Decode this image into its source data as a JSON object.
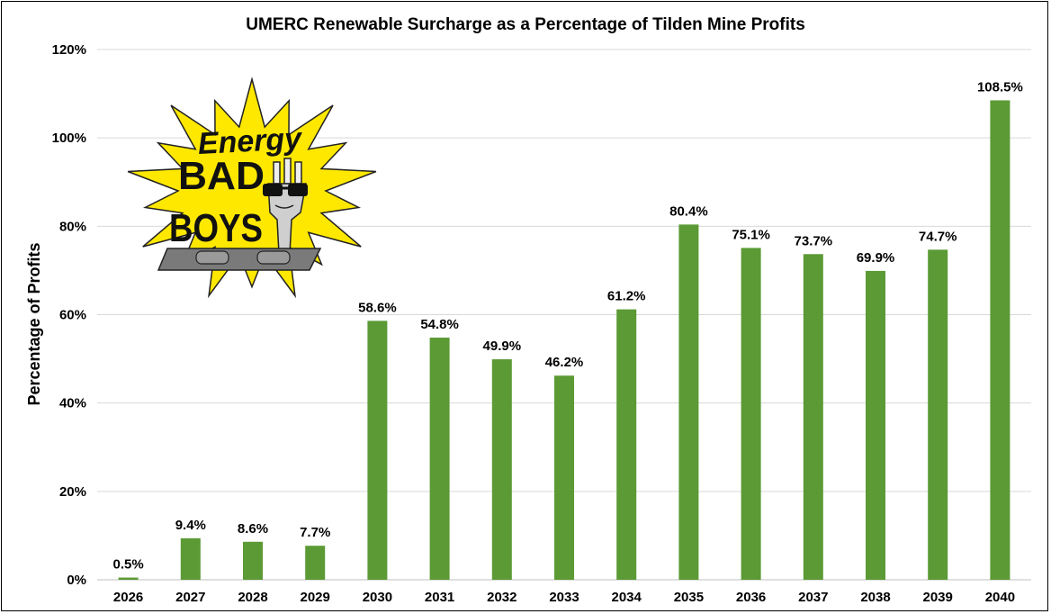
{
  "chart_data": {
    "type": "bar",
    "title": "UMERC Renewable Surcharge as a Percentage of Tilden Mine Profits",
    "xlabel": "",
    "ylabel": "Percentage of Profits",
    "categories": [
      "2026",
      "2027",
      "2028",
      "2029",
      "2030",
      "2031",
      "2032",
      "2033",
      "2034",
      "2035",
      "2036",
      "2037",
      "2038",
      "2039",
      "2040"
    ],
    "values": [
      0.5,
      9.4,
      8.6,
      7.7,
      58.6,
      54.8,
      49.9,
      46.2,
      61.2,
      80.4,
      75.1,
      73.7,
      69.9,
      74.7,
      108.5
    ],
    "data_labels": [
      "0.5%",
      "9.4%",
      "8.6%",
      "7.7%",
      "58.6%",
      "54.8%",
      "49.9%",
      "46.2%",
      "61.2%",
      "80.4%",
      "75.1%",
      "73.7%",
      "69.9%",
      "74.7%",
      "108.5%"
    ],
    "ylim": [
      0,
      120
    ],
    "yticks": [
      "0%",
      "20%",
      "40%",
      "60%",
      "80%",
      "100%",
      "120%"
    ],
    "grid": true,
    "legend": "none",
    "bar_color": "#5b9a35",
    "grid_color": "#d9d9d9"
  },
  "logo": {
    "line1": "Energy",
    "line2": "BAD",
    "line3": "BOYS",
    "burst_color": "#ffe800",
    "icon": "plug-with-sunglasses-icon"
  }
}
